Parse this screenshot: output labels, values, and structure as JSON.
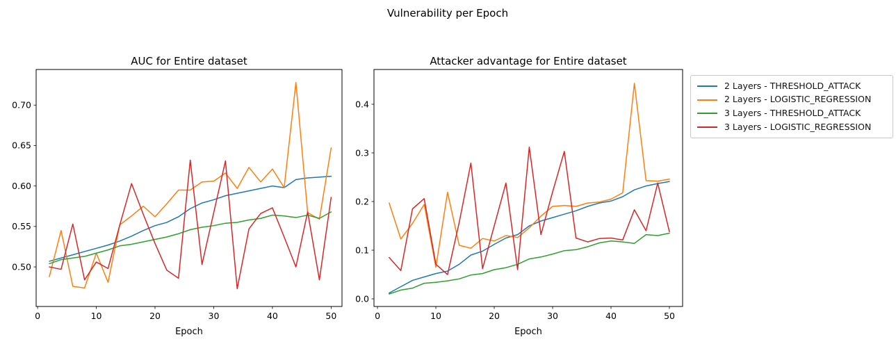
{
  "figure": {
    "suptitle": "Vulnerability per Epoch",
    "background": "#ffffff"
  },
  "colors": {
    "blue": "#1f77b4",
    "orange": "#ff7f0e",
    "green": "#2ca02c",
    "red": "#d62728"
  },
  "legend": {
    "position": "outside-upper-right",
    "entries": [
      {
        "id": "2-layers-threshold-attack",
        "label": "2 Layers - THRESHOLD_ATTACK",
        "color": "#1f77b4"
      },
      {
        "id": "2-layers-logistic-regression",
        "label": "2 Layers - LOGISTIC_REGRESSION",
        "color": "#ff7f0e"
      },
      {
        "id": "3-layers-threshold-attack",
        "label": "3 Layers - THRESHOLD_ATTACK",
        "color": "#2ca02c"
      },
      {
        "id": "3-layers-logistic-regression",
        "label": "3 Layers - LOGISTIC_REGRESSION",
        "color": "#d62728"
      }
    ]
  },
  "chart_data": [
    {
      "type": "line",
      "title": "AUC for Entire dataset",
      "xlabel": "Epoch",
      "ylabel": "",
      "grid": false,
      "xlim": [
        -0.25,
        51.85
      ],
      "ylim": [
        0.4511,
        0.744
      ],
      "xticks": [
        0,
        10,
        20,
        30,
        40,
        50
      ],
      "yticks": [
        0.5,
        0.55,
        0.6,
        0.65,
        0.7
      ],
      "ytick_labels": [
        "0.50",
        "0.55",
        "0.60",
        "0.65",
        "0.70"
      ],
      "x": [
        2,
        4,
        6,
        8,
        10,
        12,
        14,
        16,
        18,
        20,
        22,
        24,
        26,
        28,
        30,
        32,
        34,
        36,
        38,
        40,
        42,
        44,
        46,
        48,
        50
      ],
      "series": [
        {
          "id": "2-layers-threshold-attack",
          "name": "2 Layers - THRESHOLD_ATTACK",
          "color": "#1f77b4",
          "values": [
            0.507,
            0.511,
            0.515,
            0.519,
            0.523,
            0.527,
            0.532,
            0.538,
            0.545,
            0.551,
            0.555,
            0.562,
            0.572,
            0.579,
            0.583,
            0.588,
            0.591,
            0.594,
            0.597,
            0.6,
            0.598,
            0.608,
            0.61,
            0.611,
            0.612
          ]
        },
        {
          "id": "2-layers-logistic-regression",
          "name": "2 Layers - LOGISTIC_REGRESSION",
          "color": "#ff7f0e",
          "values": [
            0.488,
            0.545,
            0.476,
            0.474,
            0.517,
            0.481,
            0.552,
            0.563,
            0.575,
            0.562,
            0.578,
            0.595,
            0.595,
            0.605,
            0.606,
            0.616,
            0.597,
            0.623,
            0.605,
            0.621,
            0.598,
            0.728,
            0.567,
            0.559,
            0.647
          ]
        },
        {
          "id": "3-layers-threshold-attack",
          "name": "3 Layers - THRESHOLD_ATTACK",
          "color": "#2ca02c",
          "values": [
            0.504,
            0.509,
            0.511,
            0.513,
            0.517,
            0.521,
            0.526,
            0.528,
            0.531,
            0.534,
            0.537,
            0.541,
            0.546,
            0.549,
            0.551,
            0.554,
            0.555,
            0.558,
            0.56,
            0.564,
            0.563,
            0.561,
            0.564,
            0.56,
            0.568
          ]
        },
        {
          "id": "3-layers-logistic-regression",
          "name": "3 Layers - LOGISTIC_REGRESSION",
          "color": "#d62728",
          "values": [
            0.5,
            0.497,
            0.553,
            0.484,
            0.506,
            0.498,
            0.552,
            0.603,
            0.565,
            0.529,
            0.496,
            0.486,
            0.632,
            0.503,
            0.567,
            0.631,
            0.473,
            0.547,
            0.566,
            0.573,
            0.537,
            0.5,
            0.568,
            0.484,
            0.586
          ]
        }
      ]
    },
    {
      "type": "line",
      "title": "Attacker advantage for Entire dataset",
      "xlabel": "Epoch",
      "ylabel": "",
      "grid": false,
      "xlim": [
        -0.6,
        52.26
      ],
      "ylim": [
        -0.0157,
        0.4714
      ],
      "xticks": [
        0,
        10,
        20,
        30,
        40,
        50
      ],
      "yticks": [
        0.0,
        0.1,
        0.2,
        0.3,
        0.4
      ],
      "ytick_labels": [
        "0.0",
        "0.1",
        "0.2",
        "0.3",
        "0.4"
      ],
      "x": [
        2,
        4,
        6,
        8,
        10,
        12,
        14,
        16,
        18,
        20,
        22,
        24,
        26,
        28,
        30,
        32,
        34,
        36,
        38,
        40,
        42,
        44,
        46,
        48,
        50
      ],
      "series": [
        {
          "id": "2-layers-threshold-attack",
          "name": "2 Layers - THRESHOLD_ATTACK",
          "color": "#1f77b4",
          "values": [
            0.012,
            0.025,
            0.038,
            0.045,
            0.052,
            0.057,
            0.071,
            0.09,
            0.098,
            0.112,
            0.125,
            0.132,
            0.15,
            0.16,
            0.167,
            0.174,
            0.181,
            0.19,
            0.197,
            0.201,
            0.21,
            0.224,
            0.232,
            0.237,
            0.241
          ]
        },
        {
          "id": "2-layers-logistic-regression",
          "name": "2 Layers - LOGISTIC_REGRESSION",
          "color": "#ff7f0e",
          "values": [
            0.197,
            0.123,
            0.155,
            0.194,
            0.065,
            0.219,
            0.11,
            0.104,
            0.124,
            0.119,
            0.13,
            0.126,
            0.146,
            0.17,
            0.19,
            0.192,
            0.19,
            0.197,
            0.199,
            0.205,
            0.218,
            0.443,
            0.243,
            0.242,
            0.246
          ]
        },
        {
          "id": "3-layers-threshold-attack",
          "name": "3 Layers - THRESHOLD_ATTACK",
          "color": "#2ca02c",
          "values": [
            0.01,
            0.018,
            0.022,
            0.032,
            0.034,
            0.037,
            0.041,
            0.049,
            0.052,
            0.06,
            0.064,
            0.071,
            0.082,
            0.086,
            0.092,
            0.099,
            0.101,
            0.107,
            0.115,
            0.119,
            0.117,
            0.114,
            0.132,
            0.13,
            0.135
          ]
        },
        {
          "id": "3-layers-logistic-regression",
          "name": "3 Layers - LOGISTIC_REGRESSION",
          "color": "#d62728",
          "values": [
            0.085,
            0.058,
            0.185,
            0.206,
            0.071,
            0.05,
            0.157,
            0.279,
            0.062,
            0.15,
            0.238,
            0.06,
            0.312,
            0.132,
            0.22,
            0.303,
            0.125,
            0.117,
            0.124,
            0.125,
            0.121,
            0.183,
            0.14,
            0.238,
            0.138
          ]
        }
      ]
    }
  ]
}
